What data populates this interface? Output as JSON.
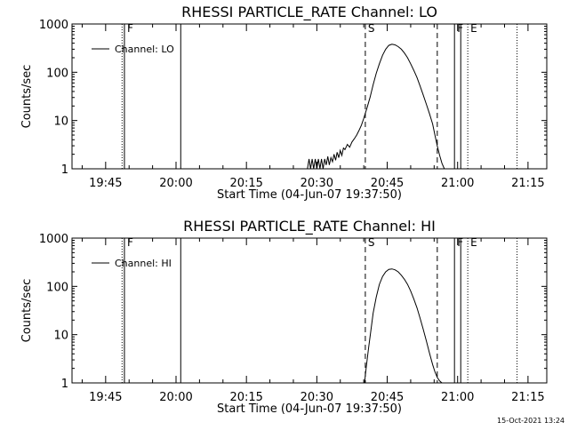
{
  "footer": {
    "timestamp": "15-Oct-2021 13:24"
  },
  "chart_data": [
    {
      "type": "line",
      "title": "RHESSI PARTICLE_RATE Channel: LO",
      "xlabel": "Start Time (04-Jun-07 19:37:50)",
      "ylabel": "Counts/sec",
      "yscale": "log",
      "ylim": [
        1,
        1000
      ],
      "xlim": [
        "19:37:50",
        "21:19:00"
      ],
      "y_ticks": [
        "1",
        "10",
        "100",
        "1000"
      ],
      "x_ticks": [
        "19:45",
        "20:00",
        "20:15",
        "20:30",
        "20:45",
        "21:00",
        "21:15"
      ],
      "legend": {
        "position": "top-left",
        "entries": [
          "Channel: LO"
        ]
      },
      "series": [
        {
          "name": "Channel: LO",
          "x": [
            "20:28:00",
            "20:28:20",
            "20:28:40",
            "20:29:00",
            "20:29:20",
            "20:29:40",
            "20:30:00",
            "20:30:20",
            "20:30:40",
            "20:31:00",
            "20:31:20",
            "20:31:40",
            "20:32:00",
            "20:32:20",
            "20:32:40",
            "20:33:00",
            "20:33:20",
            "20:33:40",
            "20:34:00",
            "20:34:20",
            "20:34:40",
            "20:35:00",
            "20:35:20",
            "20:35:40",
            "20:36:00",
            "20:36:30",
            "20:37:00",
            "20:37:30",
            "20:38:00",
            "20:38:30",
            "20:39:00",
            "20:39:30",
            "20:40:00",
            "20:40:40",
            "20:41:20",
            "20:42:00",
            "20:42:40",
            "20:43:20",
            "20:44:00",
            "20:44:40",
            "20:45:20",
            "20:46:00",
            "20:46:40",
            "20:47:20",
            "20:48:00",
            "20:48:40",
            "20:49:20",
            "20:50:00",
            "20:50:40",
            "20:51:20",
            "20:52:00",
            "20:52:40",
            "20:53:20",
            "20:54:00",
            "20:54:40",
            "20:55:10",
            "20:55:40",
            "20:56:10",
            "20:56:40",
            "20:57:10"
          ],
          "y": [
            1,
            1.6,
            1,
            1.6,
            1,
            1.6,
            1,
            1.6,
            1,
            1.6,
            1,
            1.6,
            1.2,
            1.8,
            1.2,
            1.7,
            1.4,
            2,
            1.5,
            2.2,
            1.7,
            2.4,
            1.9,
            2.7,
            2.5,
            3.2,
            2.8,
            3.6,
            4.2,
            5,
            6.3,
            8,
            11,
            18,
            30,
            55,
            95,
            150,
            225,
            300,
            360,
            380,
            370,
            340,
            300,
            250,
            200,
            150,
            110,
            78,
            52,
            34,
            22,
            14,
            8.5,
            5,
            3,
            1.9,
            1.3,
            1
          ]
        }
      ],
      "markers": [
        {
          "time": "19:48:30",
          "style": "dotted",
          "label": ""
        },
        {
          "time": "19:49:00",
          "style": "solid",
          "label": "F"
        },
        {
          "time": "20:01:00",
          "style": "solid",
          "label": ""
        },
        {
          "time": "20:40:20",
          "style": "dashed",
          "label": "S"
        },
        {
          "time": "20:55:40",
          "style": "dashed",
          "label": ""
        },
        {
          "time": "20:59:20",
          "style": "solid",
          "label": "F"
        },
        {
          "time": "21:00:40",
          "style": "solid",
          "label": ""
        },
        {
          "time": "21:02:10",
          "style": "dotted",
          "label": "E"
        },
        {
          "time": "21:12:40",
          "style": "dotted",
          "label": ""
        }
      ]
    },
    {
      "type": "line",
      "title": "RHESSI PARTICLE_RATE Channel: HI",
      "xlabel": "Start Time (04-Jun-07 19:37:50)",
      "ylabel": "Counts/sec",
      "yscale": "log",
      "ylim": [
        1,
        1000
      ],
      "xlim": [
        "19:37:50",
        "21:19:00"
      ],
      "y_ticks": [
        "1",
        "10",
        "100",
        "1000"
      ],
      "x_ticks": [
        "19:45",
        "20:00",
        "20:15",
        "20:30",
        "20:45",
        "21:00",
        "21:15"
      ],
      "legend": {
        "position": "top-left",
        "entries": [
          "Channel: HI"
        ]
      },
      "series": [
        {
          "name": "Channel: HI",
          "x": [
            "20:40:10",
            "20:40:30",
            "20:41:00",
            "20:41:30",
            "20:42:00",
            "20:42:40",
            "20:43:20",
            "20:44:00",
            "20:44:40",
            "20:45:20",
            "20:46:00",
            "20:46:40",
            "20:47:20",
            "20:48:00",
            "20:48:40",
            "20:49:20",
            "20:50:00",
            "20:50:40",
            "20:51:20",
            "20:52:00",
            "20:52:40",
            "20:53:20",
            "20:54:00",
            "20:54:40",
            "20:55:10",
            "20:55:40",
            "20:56:10",
            "20:56:40"
          ],
          "y": [
            1,
            2,
            5,
            12,
            28,
            60,
            110,
            160,
            200,
            225,
            230,
            220,
            200,
            170,
            140,
            110,
            80,
            55,
            36,
            22,
            13,
            7.5,
            4.2,
            2.4,
            1.7,
            1.3,
            1.1,
            1
          ]
        }
      ],
      "markers": [
        {
          "time": "19:48:30",
          "style": "dotted",
          "label": ""
        },
        {
          "time": "19:49:00",
          "style": "solid",
          "label": "F"
        },
        {
          "time": "20:01:00",
          "style": "solid",
          "label": ""
        },
        {
          "time": "20:40:20",
          "style": "dashed",
          "label": "S"
        },
        {
          "time": "20:55:40",
          "style": "dashed",
          "label": ""
        },
        {
          "time": "20:59:20",
          "style": "solid",
          "label": "F"
        },
        {
          "time": "21:00:40",
          "style": "solid",
          "label": ""
        },
        {
          "time": "21:02:10",
          "style": "dotted",
          "label": "E"
        },
        {
          "time": "21:12:40",
          "style": "dotted",
          "label": ""
        }
      ]
    }
  ]
}
